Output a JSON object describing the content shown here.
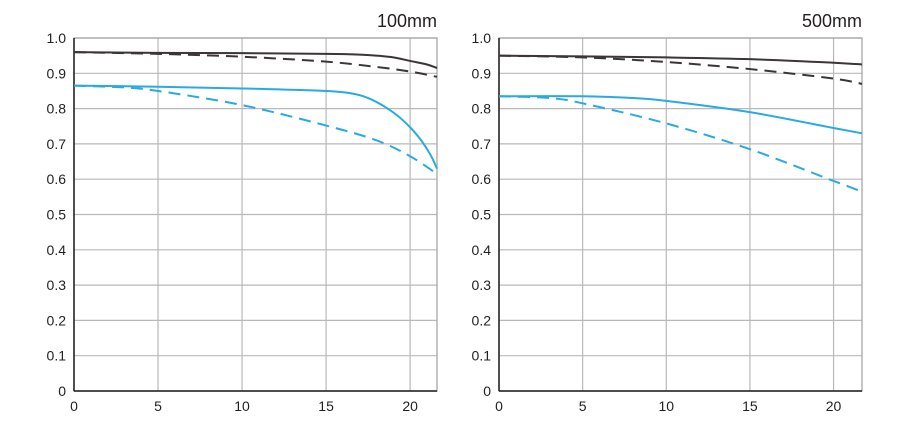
{
  "chart_data": [
    {
      "type": "line",
      "title": "100mm",
      "xlim": [
        0,
        21.6
      ],
      "ylim": [
        0,
        1.0
      ],
      "xticks": [
        "0",
        "5",
        "10",
        "15",
        "20"
      ],
      "yticks": [
        "0",
        "0.1",
        "0.2",
        "0.3",
        "0.4",
        "0.5",
        "0.6",
        "0.7",
        "0.8",
        "0.9",
        "1.0"
      ],
      "grid": true,
      "series": [
        {
          "name": "black-solid",
          "color": "#3b3535",
          "dash": false,
          "x": [
            0,
            5,
            10,
            15,
            17,
            18,
            19,
            20,
            21,
            21.6
          ],
          "y": [
            0.96,
            0.958,
            0.957,
            0.955,
            0.953,
            0.95,
            0.945,
            0.935,
            0.925,
            0.915
          ]
        },
        {
          "name": "black-dashed",
          "color": "#3b3535",
          "dash": true,
          "x": [
            0,
            5,
            10,
            15,
            18,
            20,
            21.6
          ],
          "y": [
            0.96,
            0.955,
            0.947,
            0.933,
            0.918,
            0.905,
            0.89
          ]
        },
        {
          "name": "blue-solid",
          "color": "#29aae1",
          "dash": false,
          "x": [
            0,
            5,
            10,
            15,
            16.5,
            17.5,
            18.5,
            19.5,
            20.5,
            21.2,
            21.6
          ],
          "y": [
            0.865,
            0.862,
            0.857,
            0.85,
            0.843,
            0.83,
            0.805,
            0.77,
            0.72,
            0.67,
            0.63
          ]
        },
        {
          "name": "blue-dashed",
          "color": "#29aae1",
          "dash": true,
          "x": [
            0,
            3,
            5,
            10,
            15,
            18,
            20,
            21.6
          ],
          "y": [
            0.865,
            0.86,
            0.85,
            0.81,
            0.752,
            0.71,
            0.665,
            0.615
          ]
        }
      ]
    },
    {
      "type": "line",
      "title": "500mm",
      "xlim": [
        0,
        21.7
      ],
      "ylim": [
        0,
        1.0
      ],
      "xticks": [
        "0",
        "5",
        "10",
        "15",
        "20"
      ],
      "yticks": [
        "0",
        "0.1",
        "0.2",
        "0.3",
        "0.4",
        "0.5",
        "0.6",
        "0.7",
        "0.8",
        "0.9",
        "1.0"
      ],
      "grid": true,
      "series": [
        {
          "name": "black-solid",
          "color": "#3b3535",
          "dash": false,
          "x": [
            0,
            5,
            10,
            15,
            20,
            21.7
          ],
          "y": [
            0.95,
            0.948,
            0.945,
            0.94,
            0.93,
            0.925
          ]
        },
        {
          "name": "black-dashed",
          "color": "#3b3535",
          "dash": true,
          "x": [
            0,
            5,
            10,
            15,
            20,
            21.7
          ],
          "y": [
            0.95,
            0.945,
            0.932,
            0.912,
            0.885,
            0.87
          ]
        },
        {
          "name": "blue-solid",
          "color": "#29aae1",
          "dash": false,
          "x": [
            0,
            5,
            8,
            10,
            15,
            20,
            21.7
          ],
          "y": [
            0.835,
            0.835,
            0.83,
            0.822,
            0.79,
            0.745,
            0.73
          ]
        },
        {
          "name": "blue-dashed",
          "color": "#29aae1",
          "dash": true,
          "x": [
            0,
            3,
            5,
            10,
            15,
            20,
            21.7
          ],
          "y": [
            0.835,
            0.83,
            0.815,
            0.758,
            0.685,
            0.595,
            0.565
          ]
        }
      ]
    }
  ]
}
